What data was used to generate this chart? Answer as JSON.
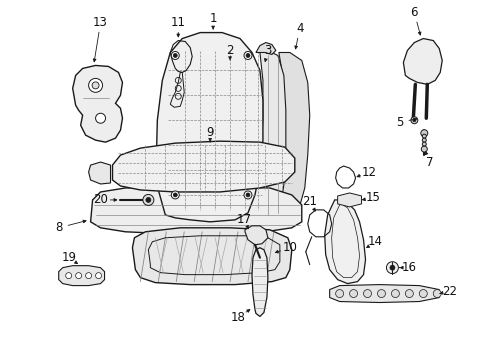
{
  "bg_color": "#ffffff",
  "line_color": "#1a1a1a",
  "text_color": "#111111",
  "fig_w": 4.89,
  "fig_h": 3.6,
  "dpi": 100
}
